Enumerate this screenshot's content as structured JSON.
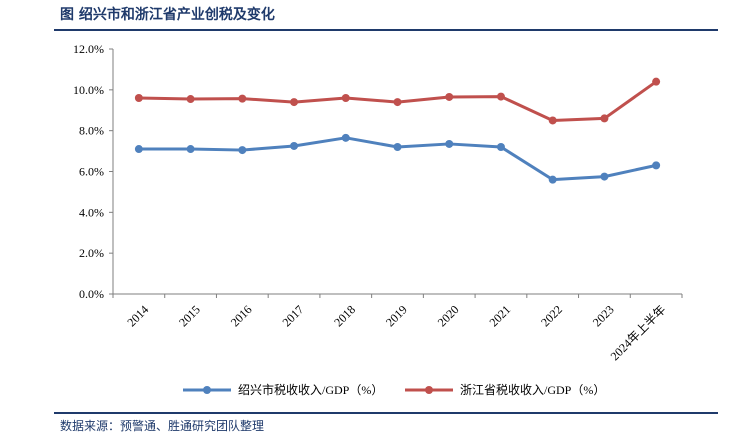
{
  "title": "图  绍兴市和浙江省产业创税及变化",
  "source": "数据来源：预警通、胜通研究团队整理",
  "chart_data": {
    "type": "line",
    "categories": [
      "2014",
      "2015",
      "2016",
      "2017",
      "2018",
      "2019",
      "2020",
      "2021",
      "2022",
      "2023",
      "2024年上半年"
    ],
    "series": [
      {
        "name": "绍兴市税收收入/GDP（%）",
        "color": "#4f81bd",
        "values": [
          7.1,
          7.1,
          7.05,
          7.25,
          7.65,
          7.2,
          7.35,
          7.2,
          5.6,
          5.75,
          6.3
        ]
      },
      {
        "name": "浙江省税收收入/GDP（%）",
        "color": "#c0504d",
        "values": [
          9.6,
          9.55,
          9.57,
          9.4,
          9.6,
          9.4,
          9.65,
          9.67,
          8.5,
          8.6,
          10.4
        ]
      }
    ],
    "yticks": [
      "0.0%",
      "2.0%",
      "4.0%",
      "6.0%",
      "8.0%",
      "10.0%",
      "12.0%"
    ],
    "ylim": [
      0,
      12
    ],
    "ystep": 2,
    "grid": false,
    "legend": "bottom"
  }
}
